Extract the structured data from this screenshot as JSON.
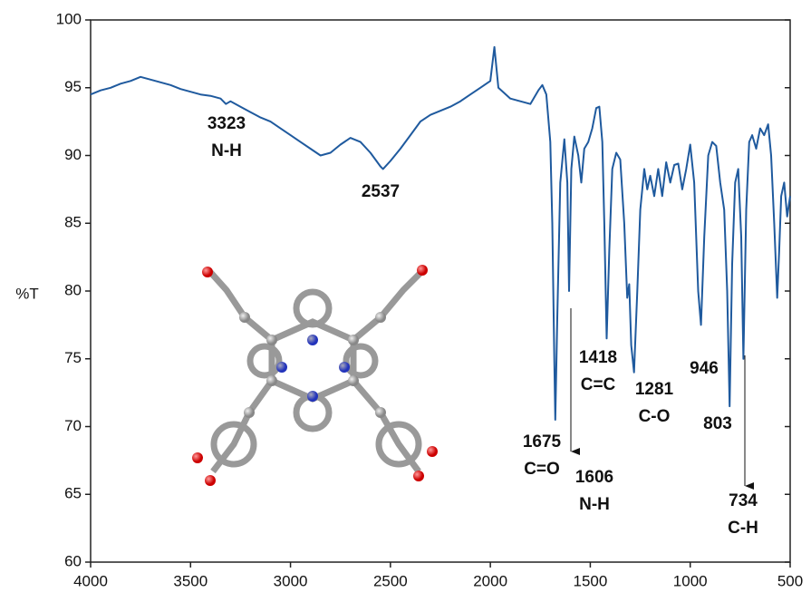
{
  "chart_data": {
    "type": "line",
    "y_label": "%T",
    "color": "#1f5a9e",
    "xlim": [
      4000,
      500
    ],
    "xticks": [
      4000,
      3500,
      3000,
      2500,
      2000,
      1500,
      1000,
      500
    ],
    "ylim": [
      60,
      100
    ],
    "yticks": [
      60,
      65,
      70,
      75,
      80,
      85,
      90,
      95,
      100
    ],
    "x": [
      4000,
      3950,
      3900,
      3850,
      3800,
      3750,
      3700,
      3650,
      3600,
      3550,
      3500,
      3450,
      3400,
      3350,
      3323,
      3300,
      3250,
      3200,
      3150,
      3100,
      3050,
      3000,
      2950,
      2900,
      2850,
      2800,
      2750,
      2700,
      2650,
      2600,
      2550,
      2537,
      2500,
      2450,
      2400,
      2350,
      2300,
      2250,
      2200,
      2150,
      2100,
      2050,
      2000,
      1980,
      1960,
      1900,
      1850,
      1800,
      1760,
      1740,
      1720,
      1700,
      1690,
      1680,
      1675,
      1665,
      1650,
      1630,
      1615,
      1606,
      1595,
      1580,
      1560,
      1545,
      1530,
      1510,
      1490,
      1470,
      1455,
      1440,
      1430,
      1418,
      1405,
      1390,
      1370,
      1350,
      1330,
      1315,
      1305,
      1295,
      1281,
      1265,
      1250,
      1230,
      1215,
      1200,
      1180,
      1160,
      1140,
      1120,
      1100,
      1080,
      1060,
      1040,
      1020,
      1000,
      980,
      960,
      946,
      930,
      910,
      890,
      870,
      850,
      830,
      815,
      803,
      790,
      775,
      760,
      745,
      734,
      720,
      705,
      690,
      670,
      650,
      630,
      610,
      595,
      580,
      565,
      555,
      545,
      530,
      515,
      500
    ],
    "values": [
      94.5,
      94.8,
      95.0,
      95.3,
      95.5,
      95.8,
      95.6,
      95.4,
      95.2,
      94.9,
      94.7,
      94.5,
      94.4,
      94.2,
      93.8,
      94.0,
      93.6,
      93.2,
      92.8,
      92.5,
      92.0,
      91.5,
      91.0,
      90.5,
      90.0,
      90.2,
      90.8,
      91.3,
      91.0,
      90.2,
      89.2,
      89.0,
      89.6,
      90.5,
      91.5,
      92.5,
      93.0,
      93.3,
      93.6,
      94.0,
      94.5,
      95.0,
      95.5,
      98.0,
      95.0,
      94.2,
      94.0,
      93.8,
      94.8,
      95.2,
      94.5,
      91,
      85,
      75,
      70.5,
      78,
      88,
      91.2,
      88,
      80,
      89,
      91.4,
      90,
      88,
      90.5,
      91,
      92,
      93.5,
      93.6,
      91,
      85,
      76.5,
      83,
      89,
      90.2,
      89.7,
      85,
      79.5,
      80.5,
      76,
      74,
      80,
      86,
      89,
      87.5,
      88.5,
      87,
      89.0,
      87,
      89.5,
      88,
      89.3,
      89.4,
      87.5,
      89,
      90.8,
      88,
      80,
      77.5,
      84,
      90,
      91,
      90.7,
      88,
      86,
      80,
      71.5,
      82,
      88,
      89,
      84,
      75,
      86,
      91,
      91.5,
      90.5,
      92,
      91.5,
      92.3,
      90,
      85,
      79.5,
      83,
      87,
      88,
      85.5,
      87
    ],
    "annotations": [
      {
        "label": "3323",
        "note": "N-H"
      },
      {
        "label": "2537"
      },
      {
        "label": "1675",
        "note": "C=O"
      },
      {
        "label": "1606",
        "note": "N-H"
      },
      {
        "label": "1418",
        "note": "C=C"
      },
      {
        "label": "1281",
        "note": "C-O"
      },
      {
        "label": "946"
      },
      {
        "label": "803"
      },
      {
        "label": "734",
        "note": "C-H"
      }
    ]
  }
}
